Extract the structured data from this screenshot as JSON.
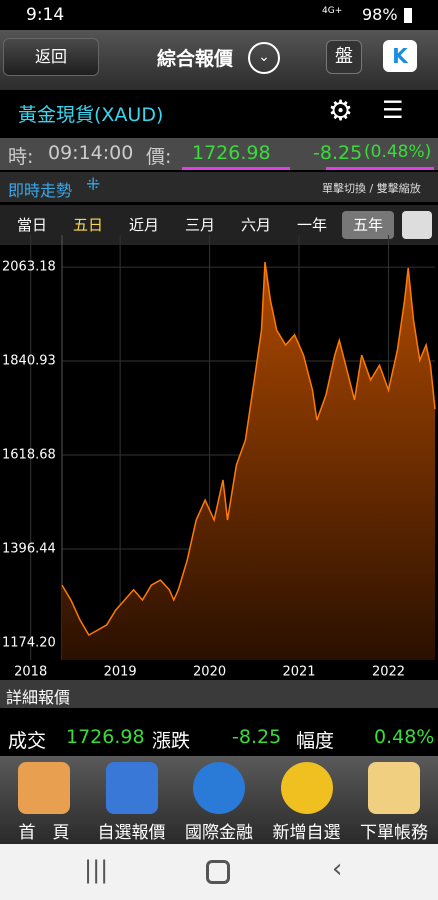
{
  "status": {
    "time": "9:14",
    "network": "4G+",
    "battery": "98%"
  },
  "header": {
    "back": "返回",
    "title": "綜合報價",
    "board": "盤",
    "k": "K"
  },
  "instrument": {
    "name": "黃金現貨(XAUD)"
  },
  "quote": {
    "time_label": "時:",
    "time": "09:14:00",
    "price_label": "價:",
    "price": "1726.98",
    "change": "-8.25",
    "change_pct": "(0.48%)"
  },
  "trend": {
    "title": "即時走勢",
    "hint": "單擊切換 / 雙擊縮放"
  },
  "tabs": [
    "當日",
    "五日",
    "近月",
    "三月",
    "六月",
    "一年",
    "五年"
  ],
  "chart_data": {
    "type": "area",
    "color": "#ff7a00",
    "x": [
      2018.35,
      2018.45,
      2018.55,
      2018.65,
      2018.75,
      2018.85,
      2018.95,
      2019.05,
      2019.15,
      2019.25,
      2019.35,
      2019.45,
      2019.55,
      2019.6,
      2019.65,
      2019.75,
      2019.85,
      2019.95,
      2020.05,
      2020.15,
      2020.2,
      2020.3,
      2020.4,
      2020.5,
      2020.58,
      2020.62,
      2020.68,
      2020.75,
      2020.85,
      2020.95,
      2021.05,
      2021.15,
      2021.2,
      2021.3,
      2021.4,
      2021.45,
      2021.55,
      2021.62,
      2021.7,
      2021.8,
      2021.9,
      2022.0,
      2022.1,
      2022.18,
      2022.22,
      2022.28,
      2022.35,
      2022.42,
      2022.47,
      2022.52
    ],
    "values": [
      1311,
      1276,
      1229,
      1193,
      1205,
      1217,
      1252,
      1276,
      1300,
      1276,
      1311,
      1323,
      1300,
      1276,
      1300,
      1370,
      1465,
      1512,
      1465,
      1560,
      1465,
      1595,
      1654,
      1796,
      1914,
      2075,
      1985,
      1914,
      1879,
      1903,
      1855,
      1772,
      1701,
      1760,
      1855,
      1890,
      1808,
      1749,
      1855,
      1796,
      1831,
      1772,
      1867,
      1985,
      2061,
      1938,
      1843,
      1879,
      1831,
      1726.98
    ],
    "xlim": [
      2018.35,
      2022.52
    ],
    "xticks": [
      2018,
      2019,
      2020,
      2021,
      2022
    ],
    "ylim": [
      1134,
      2139
    ],
    "yticks": [
      {
        "value": 1174.2,
        "label": "1174.20"
      },
      1396.44,
      1618.68,
      1840.93,
      2063.18
    ],
    "grid": true
  },
  "detail": {
    "title": "詳細報價",
    "items": [
      {
        "label": "成交",
        "value": "1726.98"
      },
      {
        "label": "漲跌",
        "value": "-8.25"
      },
      {
        "label": "幅度",
        "value": "0.48%"
      }
    ]
  },
  "nav": [
    "首　頁",
    "自選報價",
    "國際金融",
    "新增自選",
    "下單帳務"
  ]
}
